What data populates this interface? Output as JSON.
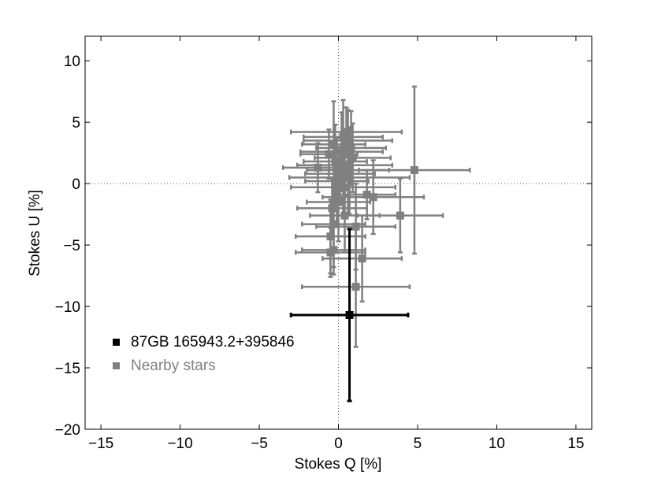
{
  "chart_data": {
    "type": "scatter",
    "xlabel": "Stokes Q [%]",
    "ylabel": "Stokes U [%]",
    "xlim": [
      -16,
      16
    ],
    "ylim": [
      -20,
      12
    ],
    "xticks": [
      -15,
      -10,
      -5,
      0,
      5,
      10,
      15
    ],
    "yticks": [
      -20,
      -15,
      -10,
      -5,
      0,
      5,
      10
    ],
    "xtick_labels": [
      "−15",
      "−10",
      "−5",
      "0",
      "5",
      "10",
      "15"
    ],
    "ytick_labels": [
      "−20",
      "−15",
      "−10",
      "−5",
      "0",
      "5",
      "10"
    ],
    "grid": false,
    "zero_lines": true,
    "legend_position": "lower-left",
    "colors": {
      "target": "#000000",
      "nearby": "#808080"
    },
    "series": [
      {
        "name": "87GB 165943.2+395846",
        "color": "#000000",
        "points": [
          {
            "x": 0.7,
            "y": -10.7,
            "xerr": 3.7,
            "yerr": 7.0
          }
        ]
      },
      {
        "name": "Nearby stars",
        "color": "#808080",
        "points": [
          {
            "x": 0.5,
            "y": 4.2,
            "xerr": 3.5,
            "yerr": 2.0
          },
          {
            "x": 0.3,
            "y": 3.8,
            "xerr": 2.5,
            "yerr": 3.0
          },
          {
            "x": 0.6,
            "y": 3.5,
            "xerr": 2.8,
            "yerr": 2.5
          },
          {
            "x": -0.3,
            "y": 3.2,
            "xerr": 2.0,
            "yerr": 3.5
          },
          {
            "x": 0.8,
            "y": 2.9,
            "xerr": 2.2,
            "yerr": 3.0
          },
          {
            "x": 0.2,
            "y": 2.6,
            "xerr": 2.6,
            "yerr": 3.2
          },
          {
            "x": -0.6,
            "y": 2.4,
            "xerr": 1.8,
            "yerr": 2.0
          },
          {
            "x": 0.9,
            "y": 2.1,
            "xerr": 2.4,
            "yerr": 2.8
          },
          {
            "x": -0.2,
            "y": 1.8,
            "xerr": 2.0,
            "yerr": 3.0
          },
          {
            "x": 0.4,
            "y": 1.5,
            "xerr": 3.0,
            "yerr": 2.5
          },
          {
            "x": -1.3,
            "y": 1.3,
            "xerr": 2.2,
            "yerr": 2.0
          },
          {
            "x": 0.6,
            "y": 1.1,
            "xerr": 2.6,
            "yerr": 3.5
          },
          {
            "x": 4.8,
            "y": 1.1,
            "xerr": 3.5,
            "yerr": 6.8
          },
          {
            "x": 0.1,
            "y": 0.8,
            "xerr": 2.2,
            "yerr": 2.2
          },
          {
            "x": 0.7,
            "y": 0.5,
            "xerr": 3.8,
            "yerr": 3.0
          },
          {
            "x": -0.1,
            "y": 0.2,
            "xerr": 2.0,
            "yerr": 3.5
          },
          {
            "x": 0.3,
            "y": -0.3,
            "xerr": 3.3,
            "yerr": 2.5
          },
          {
            "x": 1.8,
            "y": -0.9,
            "xerr": 1.8,
            "yerr": 2.0
          },
          {
            "x": 2.2,
            "y": -1.1,
            "xerr": 3.2,
            "yerr": 3.0
          },
          {
            "x": 0.0,
            "y": -1.5,
            "xerr": 2.0,
            "yerr": 3.2
          },
          {
            "x": -0.4,
            "y": -2.0,
            "xerr": 2.2,
            "yerr": 2.5
          },
          {
            "x": 0.4,
            "y": -2.6,
            "xerr": 2.2,
            "yerr": 3.0
          },
          {
            "x": 3.9,
            "y": -2.6,
            "xerr": 2.7,
            "yerr": 3.0
          },
          {
            "x": -0.3,
            "y": -3.3,
            "xerr": 2.0,
            "yerr": 3.5
          },
          {
            "x": 1.1,
            "y": -3.5,
            "xerr": 2.5,
            "yerr": 3.5
          },
          {
            "x": -0.5,
            "y": -4.3,
            "xerr": 2.2,
            "yerr": 3.0
          },
          {
            "x": -0.3,
            "y": -5.4,
            "xerr": 2.0,
            "yerr": 2.0
          },
          {
            "x": -0.5,
            "y": -5.6,
            "xerr": 2.2,
            "yerr": 2.0
          },
          {
            "x": 1.5,
            "y": -6.1,
            "xerr": 2.5,
            "yerr": 3.5
          },
          {
            "x": 1.1,
            "y": -8.4,
            "xerr": 3.4,
            "yerr": 4.9
          }
        ]
      }
    ]
  }
}
